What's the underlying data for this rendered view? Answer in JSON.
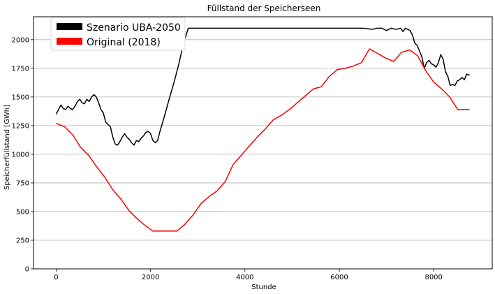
{
  "chart_data": {
    "type": "line",
    "title": "Füllstand der Speicherseen",
    "xlabel": "Stunde",
    "ylabel": "Speicherfüllstand [GWh]",
    "xlim": [
      -480,
      9240
    ],
    "ylim": [
      0,
      2200
    ],
    "xticks": [
      0,
      2000,
      4000,
      6000,
      8000
    ],
    "yticks": [
      0,
      250,
      500,
      750,
      1000,
      1250,
      1500,
      1750,
      2000
    ],
    "grid": "horizontal",
    "legend_position": "top-left",
    "series": [
      {
        "name": "Szenario UBA-2050",
        "color": "#000000",
        "x": [
          0,
          50,
          100,
          150,
          200,
          250,
          300,
          350,
          400,
          450,
          500,
          550,
          600,
          650,
          700,
          750,
          800,
          850,
          900,
          950,
          1000,
          1050,
          1100,
          1150,
          1200,
          1250,
          1300,
          1350,
          1400,
          1450,
          1500,
          1550,
          1600,
          1650,
          1700,
          1750,
          1800,
          1850,
          1900,
          1950,
          2000,
          2050,
          2100,
          2150,
          2200,
          2300,
          2400,
          2500,
          2600,
          2700,
          2800,
          2900,
          3000,
          3500,
          4000,
          4500,
          5000,
          5500,
          6000,
          6500,
          6700,
          6800,
          6900,
          7000,
          7100,
          7200,
          7300,
          7350,
          7400,
          7500,
          7550,
          7600,
          7650,
          7700,
          7750,
          7800,
          7850,
          7900,
          7950,
          8000,
          8050,
          8100,
          8150,
          8200,
          8250,
          8300,
          8350,
          8400,
          8450,
          8500,
          8550,
          8600,
          8650,
          8700,
          8760
        ],
        "y": [
          1350,
          1390,
          1430,
          1400,
          1390,
          1420,
          1400,
          1390,
          1420,
          1460,
          1480,
          1450,
          1440,
          1480,
          1460,
          1500,
          1520,
          1500,
          1450,
          1390,
          1360,
          1280,
          1260,
          1240,
          1150,
          1090,
          1080,
          1110,
          1150,
          1180,
          1150,
          1130,
          1100,
          1080,
          1120,
          1110,
          1140,
          1160,
          1190,
          1200,
          1180,
          1120,
          1100,
          1120,
          1200,
          1340,
          1490,
          1630,
          1790,
          1970,
          2100,
          2100,
          2100,
          2100,
          2100,
          2100,
          2100,
          2100,
          2100,
          2100,
          2090,
          2100,
          2100,
          2080,
          2100,
          2090,
          2100,
          2070,
          2100,
          2080,
          2040,
          1970,
          1950,
          1900,
          1850,
          1750,
          1800,
          1820,
          1790,
          1780,
          1760,
          1800,
          1870,
          1830,
          1720,
          1680,
          1600,
          1610,
          1600,
          1640,
          1650,
          1670,
          1650,
          1700,
          1690
        ]
      },
      {
        "name": "Original (2018)",
        "color": "#ff0000",
        "x": [
          0,
          180,
          350,
          520,
          690,
          860,
          1030,
          1200,
          1370,
          1540,
          1710,
          1880,
          2050,
          2220,
          2390,
          2560,
          2730,
          2900,
          3070,
          3240,
          3410,
          3580,
          3750,
          3920,
          4090,
          4260,
          4430,
          4600,
          4770,
          4940,
          5110,
          5280,
          5450,
          5620,
          5790,
          5960,
          6130,
          6300,
          6470,
          6640,
          6810,
          6980,
          7150,
          7320,
          7490,
          7660,
          7830,
          8000,
          8170,
          8340,
          8510,
          8680,
          8760
        ],
        "y": [
          1270,
          1240,
          1170,
          1060,
          990,
          890,
          800,
          690,
          610,
          510,
          440,
          380,
          330,
          330,
          330,
          330,
          390,
          470,
          570,
          630,
          680,
          760,
          910,
          990,
          1070,
          1150,
          1220,
          1300,
          1340,
          1390,
          1450,
          1510,
          1570,
          1590,
          1680,
          1740,
          1750,
          1770,
          1800,
          1920,
          1880,
          1840,
          1810,
          1890,
          1910,
          1860,
          1730,
          1630,
          1570,
          1500,
          1390,
          1390,
          1390
        ]
      }
    ]
  }
}
